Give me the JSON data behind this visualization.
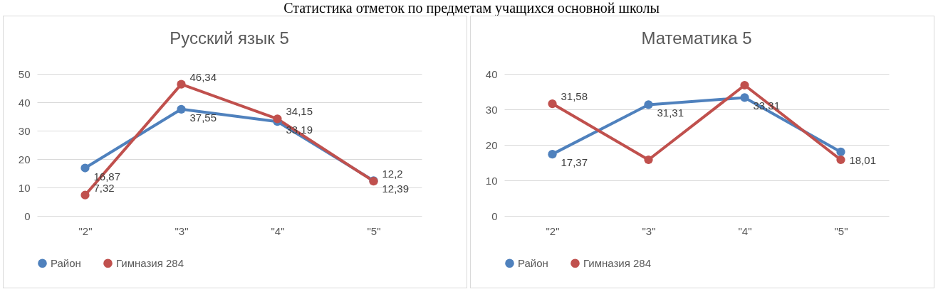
{
  "chart_data": [
    {
      "type": "line",
      "title": "Русский язык 5",
      "annotations": [
        "Статистика отметок по предметам учащихся основной школы"
      ],
      "categories": [
        "\"2\"",
        "\"3\"",
        "\"4\"",
        "\"5\""
      ],
      "ylim": [
        0,
        50
      ],
      "yticks": [
        0,
        10,
        20,
        30,
        40,
        50
      ],
      "grid": "y",
      "legend": "bottom",
      "marker": "circle",
      "series": [
        {
          "name": "Район",
          "color": "#4f81bd",
          "values": [
            16.87,
            37.55,
            33.19,
            12.39
          ],
          "value_labels": [
            "16,87",
            "37,55",
            "33,19",
            "12,39"
          ]
        },
        {
          "name": "Гимназия 284",
          "color": "#c0504d",
          "values": [
            7.32,
            46.34,
            34.15,
            12.2
          ],
          "value_labels": [
            "7,32",
            "46,34",
            "34,15",
            "12,2"
          ]
        }
      ]
    },
    {
      "type": "line",
      "title": "Математика 5",
      "categories": [
        "\"2\"",
        "\"3\"",
        "\"4\"",
        "\"5\""
      ],
      "ylim": [
        0,
        40
      ],
      "yticks": [
        0,
        10,
        20,
        30,
        40
      ],
      "grid": "y",
      "legend": "bottom",
      "marker": "circle",
      "series": [
        {
          "name": "Район",
          "color": "#4f81bd",
          "values": [
            17.37,
            31.31,
            33.31,
            18.01
          ],
          "value_labels": [
            "17,37",
            "31,31",
            "33,31",
            "18,01"
          ]
        },
        {
          "name": "Гимназия 284",
          "color": "#c0504d",
          "values": [
            31.58,
            15.8,
            36.8,
            15.8
          ],
          "value_labels": [
            "31,58",
            null,
            null,
            null
          ]
        }
      ]
    }
  ]
}
